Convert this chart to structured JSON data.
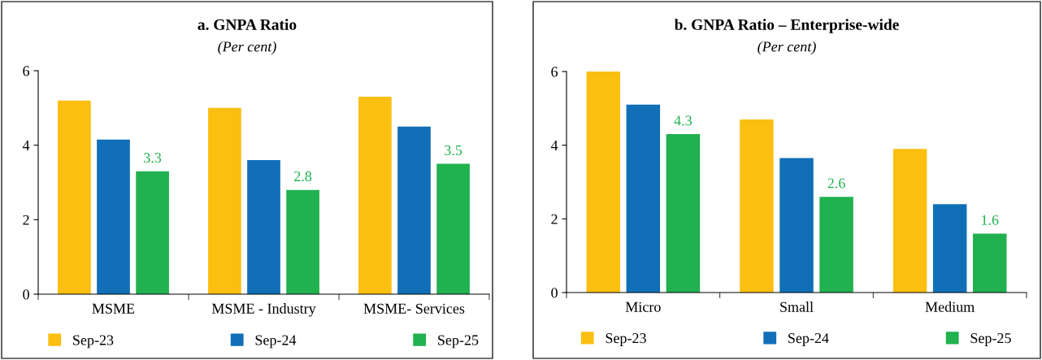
{
  "chart_data": [
    {
      "type": "bar",
      "title": "a. GNPA Ratio",
      "subtitle": "(Per cent)",
      "categories": [
        "MSME",
        "MSME - Industry",
        "MSME- Services"
      ],
      "series": [
        {
          "name": "Sep-23",
          "color": "#fbbf12",
          "values": [
            5.2,
            5.0,
            5.3
          ]
        },
        {
          "name": "Sep-24",
          "color": "#116fb8",
          "values": [
            4.15,
            3.6,
            4.5
          ]
        },
        {
          "name": "Sep-25",
          "color": "#21b14f",
          "values": [
            3.3,
            2.8,
            3.5
          ],
          "value_labels": [
            "3.3",
            "2.8",
            "3.5"
          ]
        }
      ],
      "ylim": [
        0,
        6
      ],
      "yticks": [
        0,
        2,
        4,
        6
      ],
      "grid": false,
      "legend": "bottom"
    },
    {
      "type": "bar",
      "title": "b. GNPA Ratio – Enterprise-wide",
      "subtitle": "(Per cent)",
      "categories": [
        "Micro",
        "Small",
        "Medium"
      ],
      "series": [
        {
          "name": "Sep-23",
          "color": "#fbbf12",
          "values": [
            6.0,
            4.7,
            3.9
          ]
        },
        {
          "name": "Sep-24",
          "color": "#116fb8",
          "values": [
            5.1,
            3.65,
            2.4
          ]
        },
        {
          "name": "Sep-25",
          "color": "#21b14f",
          "values": [
            4.3,
            2.6,
            1.6
          ],
          "value_labels": [
            "4.3",
            "2.6",
            "1.6"
          ]
        }
      ],
      "ylim": [
        0,
        6
      ],
      "yticks": [
        0,
        2,
        4,
        6
      ],
      "grid": false,
      "legend": "bottom"
    }
  ]
}
